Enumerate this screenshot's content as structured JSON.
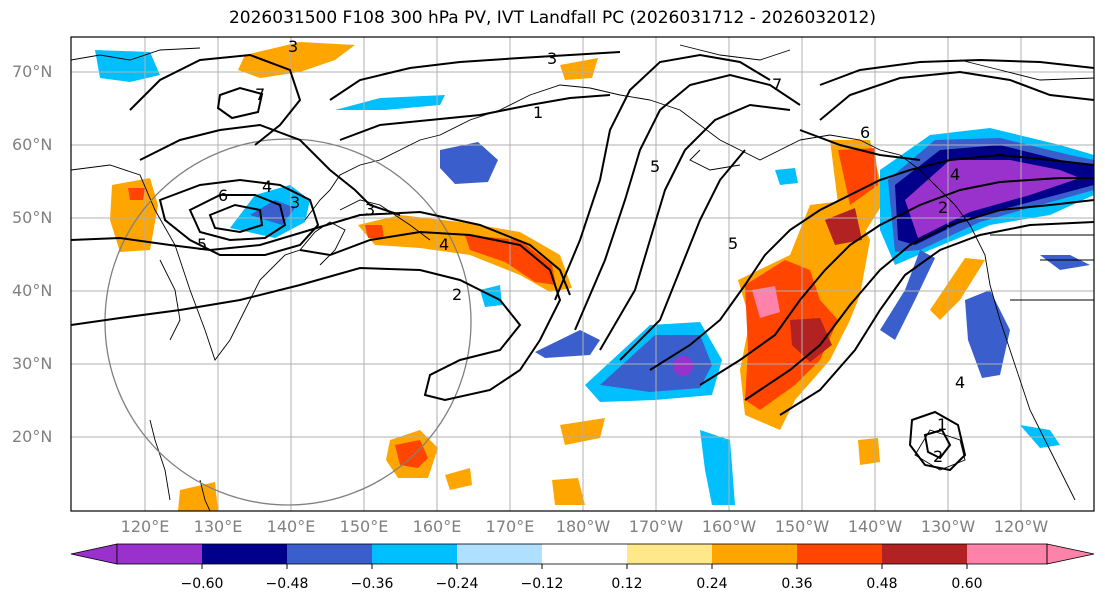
{
  "title": "2026031500 F108 300 hPa PV, IVT Landfall PC (2026031712 - 2026032012)",
  "map": {
    "lat_labels": [
      "70°N",
      "60°N",
      "50°N",
      "40°N",
      "30°N",
      "20°N"
    ],
    "lon_labels": [
      "120°E",
      "130°E",
      "140°E",
      "150°E",
      "160°E",
      "170°E",
      "180°W",
      "170°W",
      "160°W",
      "150°W",
      "140°W",
      "130°W",
      "120°W"
    ],
    "pv_contour_labels": [
      "3",
      "7",
      "6",
      "5",
      "4",
      "3",
      "4",
      "2",
      "1",
      "3",
      "5",
      "7",
      "6",
      "5",
      "4",
      "2",
      "3",
      "4",
      "1",
      "2"
    ]
  },
  "colorbar": {
    "tick_labels": [
      "−0.60",
      "−0.48",
      "−0.36",
      "−0.24",
      "−0.12",
      "0.12",
      "0.24",
      "0.36",
      "0.48",
      "0.60"
    ],
    "colors": [
      "#9932cc",
      "#00008b",
      "#3a5fcd",
      "#00bfff",
      "#b0e0ff",
      "#ffffff",
      "#ffe88a",
      "#ffa500",
      "#ff4500",
      "#b22222",
      "#ff82ab"
    ]
  }
}
